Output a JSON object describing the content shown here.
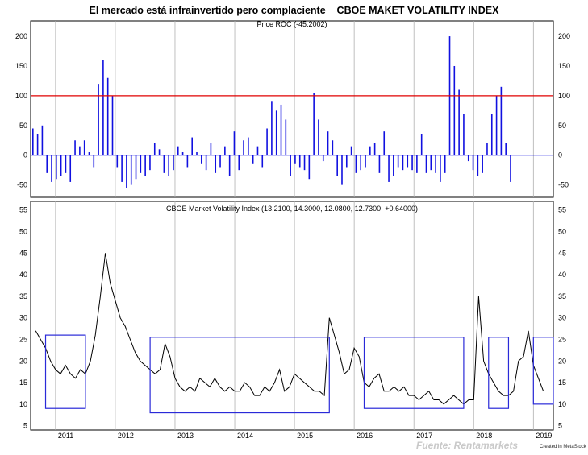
{
  "page": {
    "title": "El mercado está infrainvertido pero complaciente    CBOE MAKET VOLATILITY INDEX",
    "source": "Fuente: Rentamarkets",
    "credit": "Created in MetaStock"
  },
  "colors": {
    "roc_bars": "#1010e0",
    "threshold_line": "#e00000",
    "price_line": "#000000",
    "boxes": "#2a2ad8",
    "gridlines": "#b0b0b0"
  },
  "chart_data": [
    {
      "type": "bar",
      "title": "Price ROC (-45.2002)",
      "ylim": [
        -60,
        215
      ],
      "y_ticks": [
        -50,
        0,
        50,
        100,
        150,
        200
      ],
      "threshold": 100,
      "grid": "vertical at year starts",
      "x": [
        "2010-09",
        "2010-10",
        "2010-11",
        "2010-12",
        "2011-01",
        "2011-02",
        "2011-03",
        "2011-04",
        "2011-05",
        "2011-06",
        "2011-07",
        "2011-08",
        "2011-09",
        "2011-10",
        "2011-11",
        "2011-12",
        "2012-01",
        "2012-02",
        "2012-03",
        "2012-04",
        "2012-05",
        "2012-06",
        "2012-07",
        "2012-08",
        "2012-09",
        "2012-10",
        "2012-11",
        "2012-12",
        "2013-01",
        "2013-02",
        "2013-03",
        "2013-04",
        "2013-05",
        "2013-06",
        "2013-07",
        "2013-08",
        "2013-09",
        "2013-10",
        "2013-11",
        "2013-12",
        "2014-01",
        "2014-02",
        "2014-03",
        "2014-04",
        "2014-05",
        "2014-06",
        "2014-07",
        "2014-08",
        "2014-09",
        "2014-10",
        "2014-11",
        "2014-12",
        "2015-01",
        "2015-02",
        "2015-03",
        "2015-04",
        "2015-05",
        "2015-06",
        "2015-07",
        "2015-08",
        "2015-09",
        "2015-10",
        "2015-11",
        "2015-12",
        "2016-01",
        "2016-02",
        "2016-03",
        "2016-04",
        "2016-05",
        "2016-06",
        "2016-07",
        "2016-08",
        "2016-09",
        "2016-10",
        "2016-11",
        "2016-12",
        "2017-01",
        "2017-02",
        "2017-03",
        "2017-04",
        "2017-05",
        "2017-06",
        "2017-07",
        "2017-08",
        "2017-09",
        "2017-10",
        "2017-11",
        "2017-12",
        "2018-01",
        "2018-02",
        "2018-03",
        "2018-04",
        "2018-05",
        "2018-06",
        "2018-07",
        "2018-08",
        "2018-09",
        "2018-10",
        "2018-11",
        "2018-12",
        "2019-01",
        "2019-02",
        "2019-03"
      ],
      "values": [
        45,
        35,
        50,
        -30,
        -45,
        -40,
        -35,
        -30,
        -45,
        25,
        15,
        25,
        5,
        -20,
        120,
        160,
        130,
        100,
        -20,
        -45,
        -55,
        -50,
        -40,
        -30,
        -35,
        -25,
        20,
        10,
        -30,
        -35,
        -25,
        15,
        5,
        -20,
        30,
        5,
        -15,
        -25,
        20,
        -30,
        -20,
        15,
        -35,
        40,
        -25,
        25,
        30,
        -15,
        15,
        -20,
        45,
        90,
        75,
        85,
        60,
        -35,
        -15,
        -20,
        -25,
        -40,
        105,
        60,
        -10,
        40,
        25,
        -35,
        -50,
        -20,
        15,
        -30,
        -25,
        -20,
        15,
        20,
        -30,
        40,
        -45,
        -35,
        -20,
        -25,
        -20,
        -25,
        -30,
        35,
        -30,
        -25,
        -30,
        -45,
        -30,
        200,
        150,
        110,
        70,
        -10,
        -25,
        -35,
        -30,
        20,
        70,
        100,
        115,
        20,
        -45
      ]
    },
    {
      "type": "line",
      "title": "CBOE Market Volatility Index (13.2100, 14.3000, 12.0800, 12.7300, +0.64000)",
      "ylim": [
        4,
        57
      ],
      "y_ticks": [
        5,
        10,
        15,
        20,
        25,
        30,
        35,
        40,
        45,
        50,
        55
      ],
      "x_ticks": [
        "2011",
        "2012",
        "2013",
        "2014",
        "2015",
        "2016",
        "2017",
        "2018",
        "2019"
      ],
      "grid": "vertical at year starts",
      "x": [
        "2010-09",
        "2010-10",
        "2010-11",
        "2010-12",
        "2011-01",
        "2011-02",
        "2011-03",
        "2011-04",
        "2011-05",
        "2011-06",
        "2011-07",
        "2011-08",
        "2011-09",
        "2011-10",
        "2011-11",
        "2011-12",
        "2012-01",
        "2012-02",
        "2012-03",
        "2012-04",
        "2012-05",
        "2012-06",
        "2012-07",
        "2012-08",
        "2012-09",
        "2012-10",
        "2012-11",
        "2012-12",
        "2013-01",
        "2013-02",
        "2013-03",
        "2013-04",
        "2013-05",
        "2013-06",
        "2013-07",
        "2013-08",
        "2013-09",
        "2013-10",
        "2013-11",
        "2013-12",
        "2014-01",
        "2014-02",
        "2014-03",
        "2014-04",
        "2014-05",
        "2014-06",
        "2014-07",
        "2014-08",
        "2014-09",
        "2014-10",
        "2014-11",
        "2014-12",
        "2015-01",
        "2015-02",
        "2015-03",
        "2015-04",
        "2015-05",
        "2015-06",
        "2015-07",
        "2015-08",
        "2015-09",
        "2015-10",
        "2015-11",
        "2015-12",
        "2016-01",
        "2016-02",
        "2016-03",
        "2016-04",
        "2016-05",
        "2016-06",
        "2016-07",
        "2016-08",
        "2016-09",
        "2016-10",
        "2016-11",
        "2016-12",
        "2017-01",
        "2017-02",
        "2017-03",
        "2017-04",
        "2017-05",
        "2017-06",
        "2017-07",
        "2017-08",
        "2017-09",
        "2017-10",
        "2017-11",
        "2017-12",
        "2018-01",
        "2018-02",
        "2018-03",
        "2018-04",
        "2018-05",
        "2018-06",
        "2018-07",
        "2018-08",
        "2018-09",
        "2018-10",
        "2018-11",
        "2018-12",
        "2019-01",
        "2019-02",
        "2019-03"
      ],
      "values": [
        27,
        25,
        23,
        20,
        18,
        17,
        19,
        17,
        16,
        18,
        17,
        20,
        26,
        35,
        45,
        38,
        34,
        30,
        28,
        25,
        22,
        20,
        19,
        18,
        17,
        18,
        24,
        21,
        16,
        14,
        13,
        14,
        13,
        16,
        15,
        14,
        16,
        14,
        13,
        14,
        13,
        13,
        15,
        14,
        12,
        12,
        14,
        13,
        15,
        18,
        13,
        14,
        17,
        16,
        15,
        14,
        13,
        13,
        12,
        30,
        26,
        22,
        17,
        18,
        23,
        21,
        15,
        14,
        16,
        17,
        13,
        13,
        14,
        13,
        14,
        12,
        12,
        11,
        12,
        13,
        11,
        11,
        10,
        11,
        12,
        11,
        10,
        11,
        11,
        35,
        20,
        17,
        15,
        13,
        12,
        12,
        13,
        20,
        21,
        27,
        19,
        16,
        13
      ],
      "highlight_boxes": [
        {
          "from": "2010-11",
          "to": "2011-07",
          "low": 9,
          "high": 26
        },
        {
          "from": "2012-08",
          "to": "2015-08",
          "low": 8,
          "high": 25.5
        },
        {
          "from": "2016-03",
          "to": "2017-11",
          "low": 9,
          "high": 25.5
        },
        {
          "from": "2018-04",
          "to": "2018-08",
          "low": 9,
          "high": 25.5
        },
        {
          "from": "2019-01",
          "to": "2019-05",
          "low": 10,
          "high": 25.5
        }
      ]
    }
  ]
}
